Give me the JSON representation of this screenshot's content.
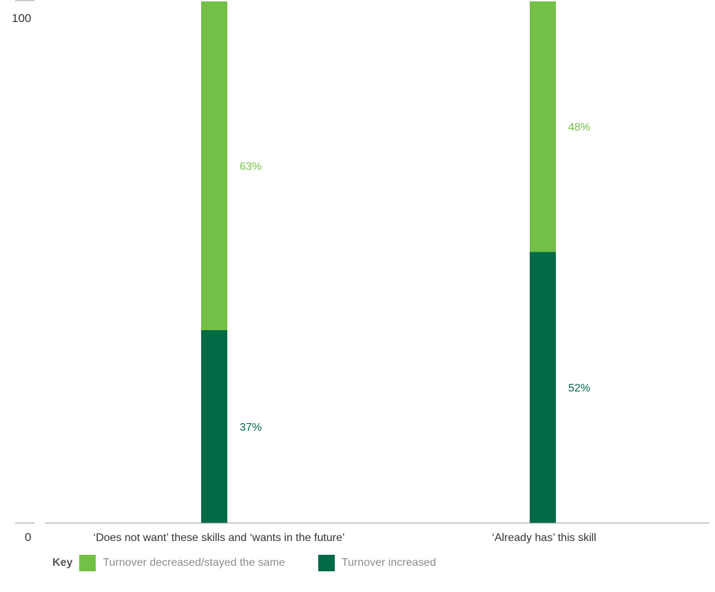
{
  "chart_data": {
    "type": "bar",
    "stacked": true,
    "categories": [
      "‘Does not want’ these skills and ‘wants in the future’",
      "‘Already has’ this skill"
    ],
    "series": [
      {
        "name": "Turnover increased",
        "color": "#006a44",
        "values": [
          37,
          52
        ],
        "labels": [
          "37%",
          "52%"
        ]
      },
      {
        "name": "Turnover decreased/stayed the same",
        "color": "#73c046",
        "values": [
          63,
          48
        ],
        "labels": [
          "63%",
          "48%"
        ]
      }
    ],
    "ylim": [
      0,
      100
    ],
    "y_ticks": [
      "0",
      "100"
    ],
    "grid": false
  },
  "legend": {
    "key_label": "Key",
    "placement": "bottom-left",
    "items": [
      {
        "label": "Turnover decreased/stayed the same",
        "color": "#73c046"
      },
      {
        "label": "Turnover increased",
        "color": "#006a44"
      }
    ]
  }
}
